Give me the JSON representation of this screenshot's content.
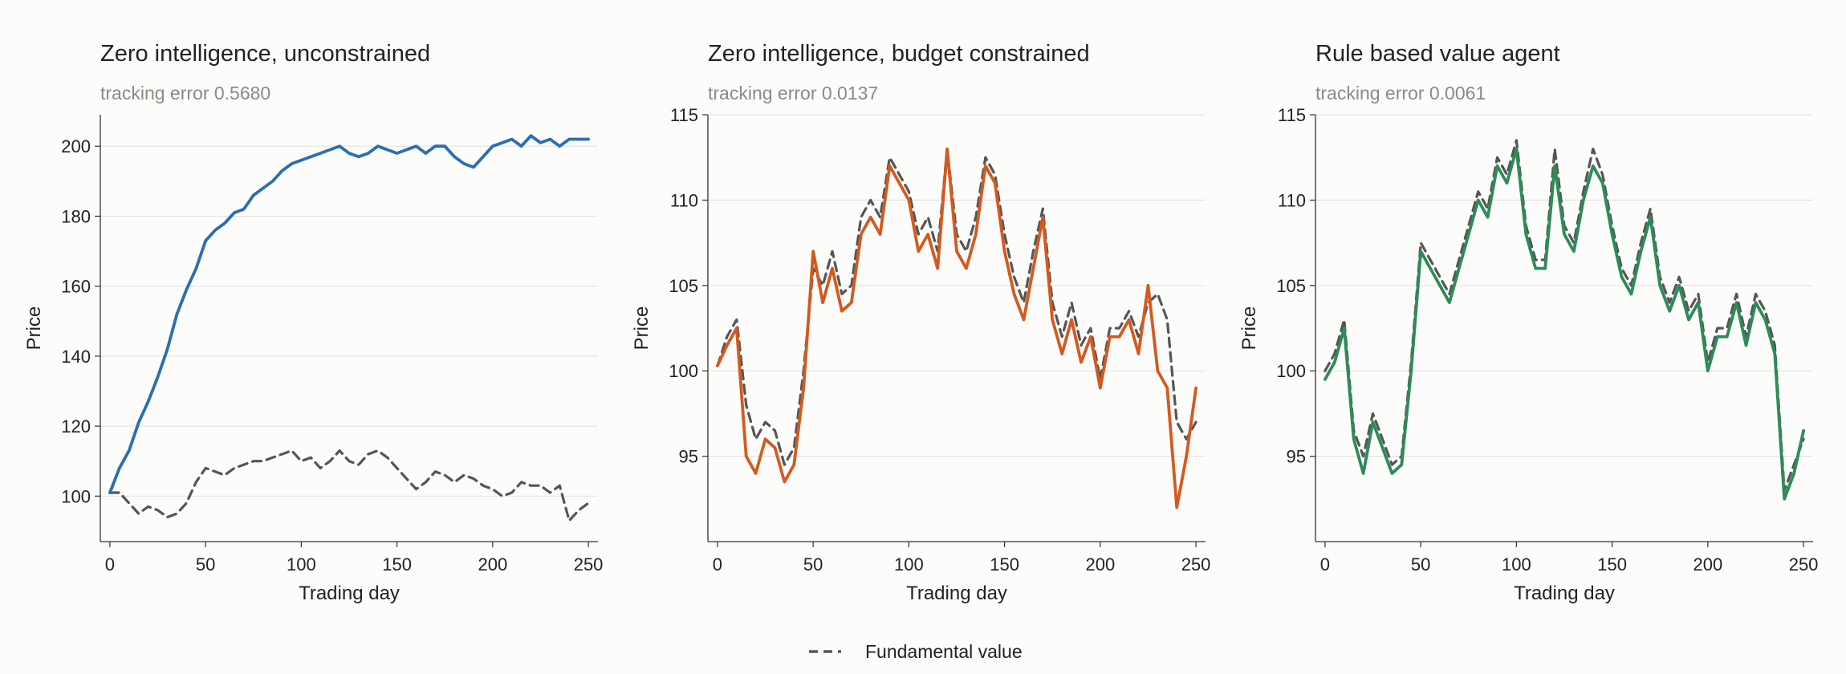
{
  "legend": {
    "fundamental_label": "Fundamental value"
  },
  "chart_data": [
    {
      "type": "line",
      "title": "Zero intelligence, unconstrained",
      "subtitle": "tracking error 0.5680",
      "xlabel": "Trading day",
      "ylabel": "Price",
      "xlim": [
        -5,
        255
      ],
      "ylim": [
        87,
        209
      ],
      "xticks": [
        0,
        50,
        100,
        150,
        200,
        250
      ],
      "yticks": [
        100,
        120,
        140,
        160,
        180,
        200
      ],
      "grid": "horizontal",
      "series": [
        {
          "role": "price",
          "style": "solid",
          "color": "#2a6fb0",
          "x": [
            0,
            5,
            10,
            15,
            20,
            25,
            30,
            35,
            40,
            45,
            50,
            55,
            60,
            65,
            70,
            75,
            80,
            85,
            90,
            95,
            100,
            105,
            110,
            115,
            120,
            125,
            130,
            135,
            140,
            145,
            150,
            155,
            160,
            165,
            170,
            175,
            180,
            185,
            190,
            195,
            200,
            205,
            210,
            215,
            220,
            225,
            230,
            235,
            240,
            245,
            250
          ],
          "values": [
            101,
            108,
            113,
            121,
            127,
            134,
            142,
            152,
            159,
            165,
            173,
            176,
            178,
            181,
            182,
            186,
            188,
            190,
            193,
            195,
            196,
            197,
            198,
            199,
            200,
            198,
            197,
            198,
            200,
            199,
            198,
            199,
            200,
            198,
            200,
            200,
            197,
            195,
            194,
            197,
            200,
            201,
            202,
            200,
            203,
            201,
            202,
            200,
            202,
            202,
            202
          ]
        },
        {
          "name": "Fundamental value",
          "role": "fundamental",
          "style": "dashed",
          "color": "#555555",
          "x": [
            0,
            5,
            10,
            15,
            20,
            25,
            30,
            35,
            40,
            45,
            50,
            55,
            60,
            65,
            70,
            75,
            80,
            85,
            90,
            95,
            100,
            105,
            110,
            115,
            120,
            125,
            130,
            135,
            140,
            145,
            150,
            155,
            160,
            165,
            170,
            175,
            180,
            185,
            190,
            195,
            200,
            205,
            210,
            215,
            220,
            225,
            230,
            235,
            240,
            245,
            250
          ],
          "values": [
            101,
            101,
            98,
            95,
            97,
            96,
            94,
            95,
            98,
            104,
            108,
            107,
            106,
            108,
            109,
            110,
            110,
            111,
            112,
            113,
            110,
            111,
            108,
            110,
            113,
            110,
            109,
            112,
            113,
            111,
            108,
            105,
            102,
            104,
            107,
            106,
            104,
            106,
            105,
            103,
            102,
            100,
            101,
            104,
            103,
            103,
            101,
            103,
            93,
            96,
            98
          ]
        }
      ]
    },
    {
      "type": "line",
      "title": "Zero intelligence, budget constrained",
      "subtitle": "tracking error 0.0137",
      "xlabel": "Trading day",
      "ylabel": "Price",
      "xlim": [
        -5,
        255
      ],
      "ylim": [
        90,
        115
      ],
      "xticks": [
        0,
        50,
        100,
        150,
        200,
        250
      ],
      "yticks": [
        95,
        100,
        105,
        110,
        115
      ],
      "grid": "horizontal",
      "series": [
        {
          "role": "price",
          "style": "solid",
          "color": "#d35a1f",
          "x": [
            0,
            5,
            10,
            15,
            20,
            25,
            30,
            35,
            40,
            45,
            50,
            55,
            60,
            65,
            70,
            75,
            80,
            85,
            90,
            95,
            100,
            105,
            110,
            115,
            120,
            125,
            130,
            135,
            140,
            145,
            150,
            155,
            160,
            165,
            170,
            175,
            180,
            185,
            190,
            195,
            200,
            205,
            210,
            215,
            220,
            225,
            230,
            235,
            240,
            245,
            250
          ],
          "values": [
            100.3,
            101.5,
            102.5,
            95,
            94,
            96,
            95.5,
            93.5,
            94.5,
            99,
            107,
            104,
            106,
            103.5,
            104,
            108,
            109,
            108,
            112,
            111,
            110,
            107,
            108,
            106,
            113,
            107,
            106,
            108,
            112,
            111,
            107,
            104.5,
            103,
            106,
            109,
            103,
            101,
            103,
            100.5,
            102,
            99,
            102,
            102,
            103,
            101,
            105,
            100,
            99,
            92,
            95,
            99
          ]
        },
        {
          "name": "Fundamental value",
          "role": "fundamental",
          "style": "dashed",
          "color": "#555555",
          "x": [
            0,
            5,
            10,
            15,
            20,
            25,
            30,
            35,
            40,
            45,
            50,
            55,
            60,
            65,
            70,
            75,
            80,
            85,
            90,
            95,
            100,
            105,
            110,
            115,
            120,
            125,
            130,
            135,
            140,
            145,
            150,
            155,
            160,
            165,
            170,
            175,
            180,
            185,
            190,
            195,
            200,
            205,
            210,
            215,
            220,
            225,
            230,
            235,
            240,
            245,
            250
          ],
          "values": [
            100.3,
            102,
            103,
            98,
            96,
            97,
            96.5,
            94.5,
            95.5,
            100,
            106,
            105,
            107,
            104.5,
            105,
            109,
            110,
            109,
            112.5,
            111.5,
            110.5,
            108,
            109,
            107,
            113,
            108,
            107,
            109,
            112.5,
            111.5,
            108,
            105.5,
            104,
            107,
            109.5,
            104,
            102,
            104,
            101.5,
            102.5,
            99.5,
            102.5,
            102.5,
            103.5,
            102,
            104,
            104.5,
            103,
            97,
            96,
            97
          ]
        }
      ]
    },
    {
      "type": "line",
      "title": "Rule based value agent",
      "subtitle": "tracking error 0.0061",
      "xlabel": "Trading day",
      "ylabel": "Price",
      "xlim": [
        -5,
        255
      ],
      "ylim": [
        90,
        115
      ],
      "xticks": [
        0,
        50,
        100,
        150,
        200,
        250
      ],
      "yticks": [
        95,
        100,
        105,
        110,
        115
      ],
      "grid": "horizontal",
      "series": [
        {
          "role": "price",
          "style": "solid",
          "color": "#2e8b57",
          "x": [
            0,
            5,
            10,
            15,
            20,
            25,
            30,
            35,
            40,
            45,
            50,
            55,
            60,
            65,
            70,
            75,
            80,
            85,
            90,
            95,
            100,
            105,
            110,
            115,
            120,
            125,
            130,
            135,
            140,
            145,
            150,
            155,
            160,
            165,
            170,
            175,
            180,
            185,
            190,
            195,
            200,
            205,
            210,
            215,
            220,
            225,
            230,
            235,
            240,
            245,
            250
          ],
          "values": [
            99.5,
            100.5,
            102.5,
            96,
            94,
            97,
            95.5,
            94,
            94.5,
            100,
            107,
            106,
            105,
            104,
            106,
            108,
            110,
            109,
            112,
            111,
            113,
            108,
            106,
            106,
            112,
            108,
            107,
            110,
            112,
            111,
            108,
            105.5,
            104.5,
            107,
            109,
            105,
            103.5,
            105,
            103,
            104,
            100,
            102,
            102,
            104,
            101.5,
            104,
            103,
            101,
            92.5,
            94,
            96.5
          ]
        },
        {
          "name": "Fundamental value",
          "role": "fundamental",
          "style": "dashed",
          "color": "#555555",
          "x": [
            0,
            5,
            10,
            15,
            20,
            25,
            30,
            35,
            40,
            45,
            50,
            55,
            60,
            65,
            70,
            75,
            80,
            85,
            90,
            95,
            100,
            105,
            110,
            115,
            120,
            125,
            130,
            135,
            140,
            145,
            150,
            155,
            160,
            165,
            170,
            175,
            180,
            185,
            190,
            195,
            200,
            205,
            210,
            215,
            220,
            225,
            230,
            235,
            240,
            245,
            250
          ],
          "values": [
            100,
            101,
            103,
            96.5,
            95,
            97.5,
            96,
            94.5,
            95,
            100.5,
            107.5,
            106.5,
            105.5,
            104.5,
            106.5,
            108.5,
            110.5,
            109.5,
            112.5,
            111.5,
            113.5,
            108.5,
            106.5,
            106.5,
            113,
            108.5,
            107.5,
            110.5,
            113,
            111.5,
            108.5,
            106,
            105,
            107.5,
            109.5,
            105.5,
            104,
            105.5,
            103.5,
            104.5,
            100.5,
            102.5,
            102.5,
            104.5,
            102,
            104.5,
            103.5,
            101.5,
            93,
            94.5,
            96
          ]
        }
      ]
    }
  ]
}
